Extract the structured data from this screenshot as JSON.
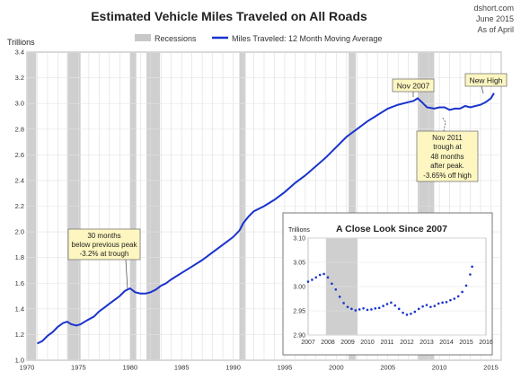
{
  "header": {
    "site": "dshort.com",
    "date": "June 2015",
    "as_of": "As of April"
  },
  "chart_data": [
    {
      "type": "line",
      "title": "Estimated Vehicle Miles Traveled on All Roads",
      "ylabel": "Trillions",
      "xlim": [
        1970,
        2016
      ],
      "ylim": [
        1.0,
        3.4
      ],
      "yticks": [
        "1.0",
        "1.2",
        "1.4",
        "1.6",
        "1.8",
        "2.0",
        "2.2",
        "2.4",
        "2.6",
        "2.8",
        "3.0",
        "3.2",
        "3.4"
      ],
      "xticks": [
        "1970",
        "1975",
        "1980",
        "1985",
        "1990",
        "1995",
        "2000",
        "2005",
        "2010",
        "2015"
      ],
      "legend": [
        {
          "name": "Recessions",
          "color": "#c8c8c8"
        },
        {
          "name": "Miles Traveled: 12 Month Moving Average",
          "color": "#1a33cc"
        }
      ],
      "recessions": [
        [
          1970.0,
          1970.9
        ],
        [
          1973.9,
          1975.2
        ],
        [
          1980.0,
          1980.6
        ],
        [
          1981.6,
          1982.9
        ],
        [
          1990.6,
          1991.2
        ],
        [
          2001.2,
          2001.9
        ],
        [
          2007.9,
          2009.5
        ]
      ],
      "series": [
        {
          "name": "Miles Traveled: 12 Month Moving Average",
          "color": "#1a33cc",
          "x": [
            1971.0,
            1971.5,
            1972.0,
            1972.5,
            1973.0,
            1973.5,
            1973.9,
            1974.3,
            1974.8,
            1975.2,
            1975.8,
            1976.5,
            1977.0,
            1977.5,
            1978.0,
            1978.5,
            1979.0,
            1979.5,
            1980.0,
            1980.5,
            1981.0,
            1981.5,
            1982.0,
            1982.5,
            1983.0,
            1983.5,
            1984.0,
            1985.0,
            1986.0,
            1987.0,
            1988.0,
            1989.0,
            1990.0,
            1990.6,
            1991.0,
            1991.5,
            1992.0,
            1993.0,
            1994.0,
            1995.0,
            1996.0,
            1997.0,
            1998.0,
            1999.0,
            2000.0,
            2001.0,
            2001.5,
            2002.0,
            2003.0,
            2004.0,
            2005.0,
            2006.0,
            2007.0,
            2007.5,
            2007.9,
            2008.3,
            2008.8,
            2009.5,
            2010.0,
            2010.5,
            2011.0,
            2011.5,
            2012.0,
            2012.5,
            2013.0,
            2013.5,
            2014.0,
            2014.5,
            2015.0,
            2015.3
          ],
          "y": [
            1.13,
            1.15,
            1.19,
            1.22,
            1.26,
            1.29,
            1.3,
            1.28,
            1.27,
            1.28,
            1.31,
            1.34,
            1.38,
            1.41,
            1.44,
            1.47,
            1.5,
            1.54,
            1.56,
            1.53,
            1.52,
            1.52,
            1.53,
            1.55,
            1.58,
            1.6,
            1.63,
            1.68,
            1.73,
            1.78,
            1.84,
            1.9,
            1.96,
            2.01,
            2.07,
            2.12,
            2.16,
            2.2,
            2.25,
            2.31,
            2.38,
            2.44,
            2.51,
            2.58,
            2.66,
            2.74,
            2.77,
            2.8,
            2.86,
            2.91,
            2.96,
            2.99,
            3.01,
            3.02,
            3.04,
            3.01,
            2.97,
            2.96,
            2.97,
            2.97,
            2.95,
            2.96,
            2.96,
            2.98,
            2.97,
            2.98,
            2.99,
            3.01,
            3.04,
            3.08
          ]
        }
      ],
      "annotations": [
        {
          "text": "Nov 2007"
        },
        {
          "text": "New High"
        },
        {
          "lines": [
            "Nov 2011",
            "trough at",
            "48 months",
            "after peak.",
            "-3.65% off high"
          ]
        },
        {
          "lines": [
            "30 months",
            "below previous peak",
            "-3.2% at trough"
          ]
        }
      ]
    },
    {
      "type": "line",
      "title": "A Close Look Since 2007",
      "ylabel": "Trillions",
      "xlim": [
        2007,
        2016
      ],
      "ylim": [
        2.9,
        3.1
      ],
      "yticks": [
        "2.90",
        "2.95",
        "3.00",
        "3.05",
        "3.10"
      ],
      "xticks": [
        "2007",
        "2008",
        "2009",
        "2010",
        "2011",
        "2012",
        "2013",
        "2014",
        "2015",
        "2016"
      ],
      "recessions": [
        [
          2007.9,
          2009.5
        ]
      ],
      "series": [
        {
          "name": "",
          "color": "#1a33cc",
          "x": [
            2007.0,
            2007.2,
            2007.4,
            2007.6,
            2007.8,
            2008.0,
            2008.2,
            2008.4,
            2008.6,
            2008.8,
            2009.0,
            2009.2,
            2009.4,
            2009.6,
            2009.8,
            2010.0,
            2010.2,
            2010.4,
            2010.6,
            2010.8,
            2011.0,
            2011.2,
            2011.4,
            2011.6,
            2011.8,
            2012.0,
            2012.2,
            2012.4,
            2012.6,
            2012.8,
            2013.0,
            2013.2,
            2013.4,
            2013.6,
            2013.8,
            2014.0,
            2014.2,
            2014.4,
            2014.6,
            2014.8,
            2015.0,
            2015.2,
            2015.3
          ],
          "y": [
            3.01,
            3.014,
            3.019,
            3.024,
            3.026,
            3.019,
            3.006,
            2.994,
            2.979,
            2.966,
            2.958,
            2.954,
            2.951,
            2.953,
            2.955,
            2.952,
            2.953,
            2.955,
            2.956,
            2.96,
            2.964,
            2.967,
            2.961,
            2.954,
            2.946,
            2.942,
            2.944,
            2.948,
            2.954,
            2.959,
            2.962,
            2.958,
            2.96,
            2.965,
            2.967,
            2.968,
            2.972,
            2.975,
            2.98,
            2.989,
            3.002,
            3.025,
            3.041
          ]
        }
      ]
    }
  ]
}
